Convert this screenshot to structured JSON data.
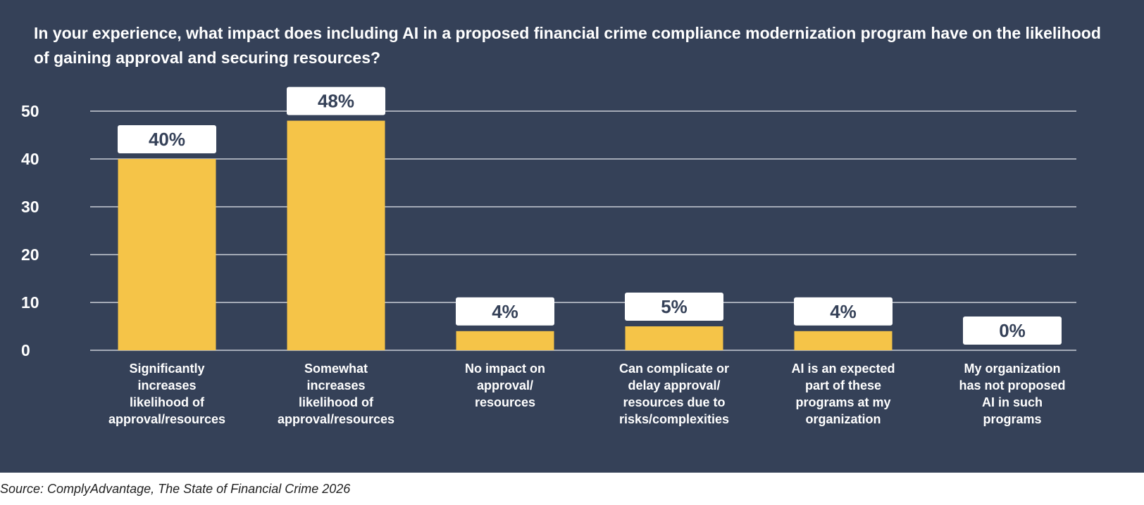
{
  "chart_data": {
    "type": "bar",
    "title": "In your experience, what impact does including AI in a proposed financial crime compliance modernization program have on the likelihood of gaining approval and securing resources?",
    "categories": [
      [
        "Significantly",
        "increases",
        "likelihood of",
        "approval/resources"
      ],
      [
        "Somewhat",
        "increases",
        "likelihood of",
        "approval/resources"
      ],
      [
        "No impact on",
        "approval/",
        "resources"
      ],
      [
        "Can complicate or",
        "delay approval/",
        "resources due to",
        "risks/complexities"
      ],
      [
        "AI is an expected",
        "part of these",
        "programs at my",
        "organization"
      ],
      [
        "My organization",
        "has not proposed",
        "AI in such",
        "programs"
      ]
    ],
    "values": [
      40,
      48,
      4,
      5,
      4,
      0
    ],
    "data_labels": [
      "40%",
      "48%",
      "4%",
      "5%",
      "4%",
      "0%"
    ],
    "yticks": [
      "0",
      "10",
      "20",
      "30",
      "40",
      "50"
    ],
    "ylim": [
      0,
      50
    ],
    "xlabel": "",
    "ylabel": "",
    "grid": true,
    "colors": {
      "bar": "#F5C448",
      "background": "#354158",
      "grid": "#C9CDD5",
      "label_box": "#FFFFFF",
      "label_text": "#354158"
    }
  },
  "source": "Source: ComplyAdvantage, The State of Financial Crime 2026"
}
